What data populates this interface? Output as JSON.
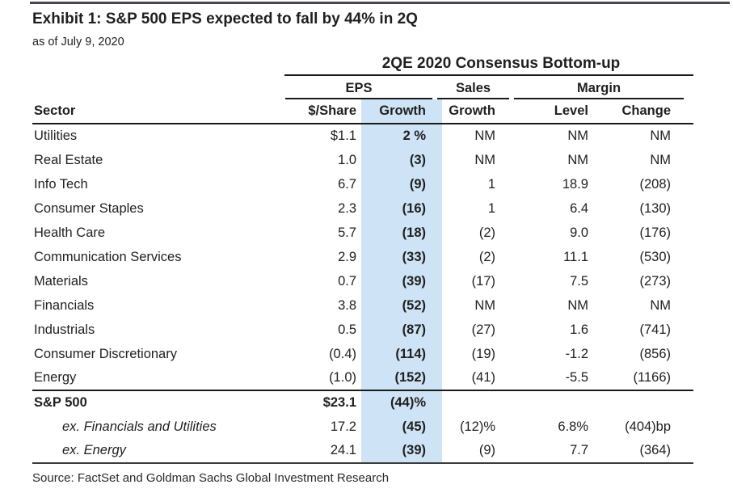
{
  "page": {
    "title": "Exhibit 1: S&P 500 EPS expected to fall by 44% in 2Q",
    "subtitle": "as of July 9, 2020",
    "source": "Source: FactSet and Goldman Sachs Global Investment Research"
  },
  "table": {
    "spanner": "2QE 2020 Consensus Bottom-up",
    "groups": {
      "eps": "EPS",
      "sales": "Sales",
      "margin": "Margin"
    },
    "columns": {
      "sector": "Sector",
      "share": "$/Share",
      "eps_growth": "Growth",
      "sales_growth": "Growth",
      "level": "Level",
      "change": "Change"
    },
    "highlight_color": "#cee3f5",
    "rows": [
      {
        "sector": "Utilities",
        "share": "$1.1",
        "eps_growth": "2 %",
        "sales_growth": "NM",
        "level": "NM",
        "change": "NM"
      },
      {
        "sector": "Real Estate",
        "share": "1.0",
        "eps_growth": "(3)",
        "sales_growth": "NM",
        "level": "NM",
        "change": "NM"
      },
      {
        "sector": "Info Tech",
        "share": "6.7",
        "eps_growth": "(9)",
        "sales_growth": "1",
        "level": "18.9",
        "change": "(208)"
      },
      {
        "sector": "Consumer Staples",
        "share": "2.3",
        "eps_growth": "(16)",
        "sales_growth": "1",
        "level": "6.4",
        "change": "(130)"
      },
      {
        "sector": "Health Care",
        "share": "5.7",
        "eps_growth": "(18)",
        "sales_growth": "(2)",
        "level": "9.0",
        "change": "(176)"
      },
      {
        "sector": "Communication Services",
        "share": "2.9",
        "eps_growth": "(33)",
        "sales_growth": "(2)",
        "level": "11.1",
        "change": "(530)"
      },
      {
        "sector": "Materials",
        "share": "0.7",
        "eps_growth": "(39)",
        "sales_growth": "(17)",
        "level": "7.5",
        "change": "(273)"
      },
      {
        "sector": "Financials",
        "share": "3.8",
        "eps_growth": "(52)",
        "sales_growth": "NM",
        "level": "NM",
        "change": "NM"
      },
      {
        "sector": "Industrials",
        "share": "0.5",
        "eps_growth": "(87)",
        "sales_growth": "(27)",
        "level": "1.6",
        "change": "(741)"
      },
      {
        "sector": "Consumer Discretionary",
        "share": "(0.4)",
        "eps_growth": "(114)",
        "sales_growth": "(19)",
        "level": "-1.2",
        "change": "(856)"
      },
      {
        "sector": "Energy",
        "share": "(1.0)",
        "eps_growth": "(152)",
        "sales_growth": "(41)",
        "level": "-5.5",
        "change": "(1166)"
      },
      {
        "sector": "S&P 500",
        "share": "$23.1",
        "eps_growth": "(44)%",
        "sales_growth": "",
        "level": "",
        "change": ""
      },
      {
        "sector": "ex. Financials and Utilities",
        "share": "17.2",
        "eps_growth": "(45)",
        "sales_growth": "(12)%",
        "level": "6.8%",
        "change": "(404)bp"
      },
      {
        "sector": "ex. Energy",
        "share": "24.1",
        "eps_growth": "(39)",
        "sales_growth": "(9)",
        "level": "7.7",
        "change": "(364)"
      }
    ]
  }
}
